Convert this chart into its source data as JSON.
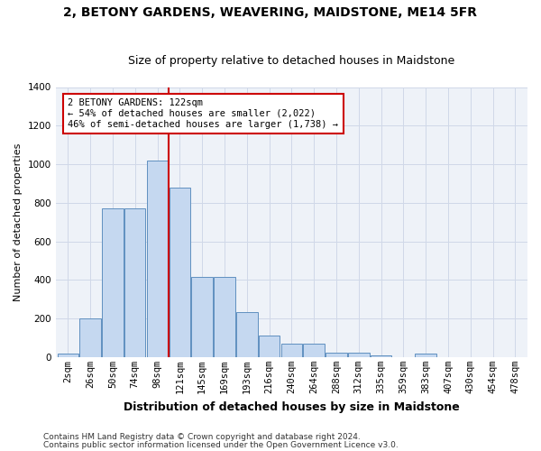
{
  "title": "2, BETONY GARDENS, WEAVERING, MAIDSTONE, ME14 5FR",
  "subtitle": "Size of property relative to detached houses in Maidstone",
  "xlabel": "Distribution of detached houses by size in Maidstone",
  "ylabel": "Number of detached properties",
  "bins": [
    "2sqm",
    "26sqm",
    "50sqm",
    "74sqm",
    "98sqm",
    "121sqm",
    "145sqm",
    "169sqm",
    "193sqm",
    "216sqm",
    "240sqm",
    "264sqm",
    "288sqm",
    "312sqm",
    "335sqm",
    "359sqm",
    "383sqm",
    "407sqm",
    "430sqm",
    "454sqm",
    "478sqm"
  ],
  "values": [
    20,
    200,
    770,
    770,
    1020,
    880,
    415,
    415,
    235,
    110,
    70,
    70,
    25,
    25,
    10,
    0,
    20,
    0,
    0,
    0,
    0
  ],
  "bar_color": "#c5d8f0",
  "bar_edge_color": "#6090c0",
  "vline_x_index": 5,
  "vline_color": "#cc0000",
  "annotation_text": "2 BETONY GARDENS: 122sqm\n← 54% of detached houses are smaller (2,022)\n46% of semi-detached houses are larger (1,738) →",
  "annotation_box_color": "#ffffff",
  "annotation_box_edgecolor": "#cc0000",
  "ylim": [
    0,
    1400
  ],
  "yticks": [
    0,
    200,
    400,
    600,
    800,
    1000,
    1200,
    1400
  ],
  "grid_color": "#d0d8e8",
  "background_color": "#eef2f8",
  "footer1": "Contains HM Land Registry data © Crown copyright and database right 2024.",
  "footer2": "Contains public sector information licensed under the Open Government Licence v3.0.",
  "title_fontsize": 10,
  "subtitle_fontsize": 9,
  "ylabel_fontsize": 8,
  "xlabel_fontsize": 9,
  "tick_fontsize": 7.5,
  "annotation_fontsize": 7.5,
  "footer_fontsize": 6.5
}
